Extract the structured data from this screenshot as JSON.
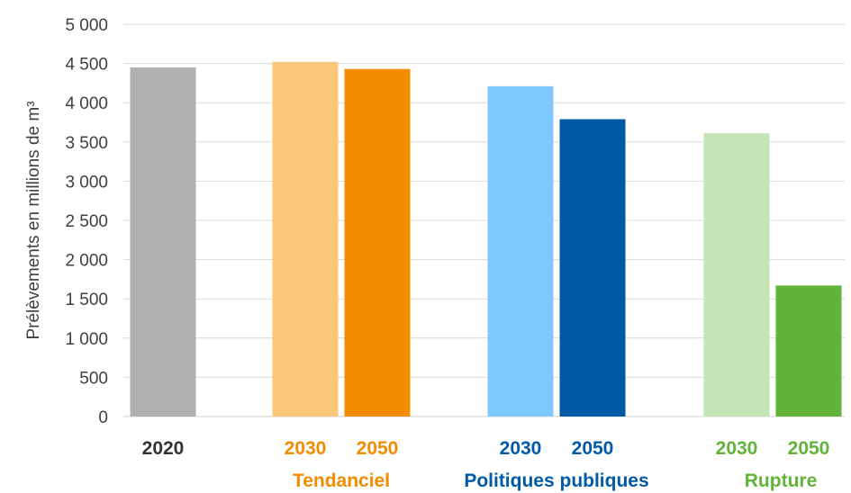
{
  "chart_data": {
    "type": "bar",
    "ylabel": "Prélèvements en millions de m³",
    "ylim": [
      0,
      5000
    ],
    "yticks": [
      0,
      500,
      1000,
      1500,
      2000,
      2500,
      3000,
      3500,
      4000,
      4500,
      5000
    ],
    "ytick_labels": [
      "0",
      "500",
      "1 000",
      "1 500",
      "2 000",
      "2 500",
      "3 000",
      "3 500",
      "4 000",
      "4 500",
      "5 000"
    ],
    "grid": true,
    "bars": [
      {
        "label": "2020",
        "value": 4450,
        "color": "#b0b0b0",
        "label_color": "#333333"
      },
      {
        "label": "2030",
        "value": 4520,
        "color": "#fdc77a",
        "label_color": "#f28c00",
        "group": 1
      },
      {
        "label": "2050",
        "value": 4430,
        "color": "#f28c00",
        "label_color": "#f28c00",
        "group": 1
      },
      {
        "label": "2030",
        "value": 4210,
        "color": "#7fc8ff",
        "label_color": "#005aa6",
        "group": 2
      },
      {
        "label": "2050",
        "value": 3790,
        "color": "#005aa6",
        "label_color": "#005aa6",
        "group": 2
      },
      {
        "label": "2030",
        "value": 3610,
        "color": "#c5e4b4",
        "label_color": "#62b33a",
        "group": 3
      },
      {
        "label": "2050",
        "value": 1670,
        "color": "#62b33a",
        "label_color": "#62b33a",
        "group": 3
      }
    ],
    "groups": [
      {
        "name": "Tendanciel",
        "color": "#f28c00"
      },
      {
        "name": "Politiques publiques",
        "color": "#005aa6"
      },
      {
        "name": "Rupture",
        "color": "#62b33a"
      }
    ]
  }
}
